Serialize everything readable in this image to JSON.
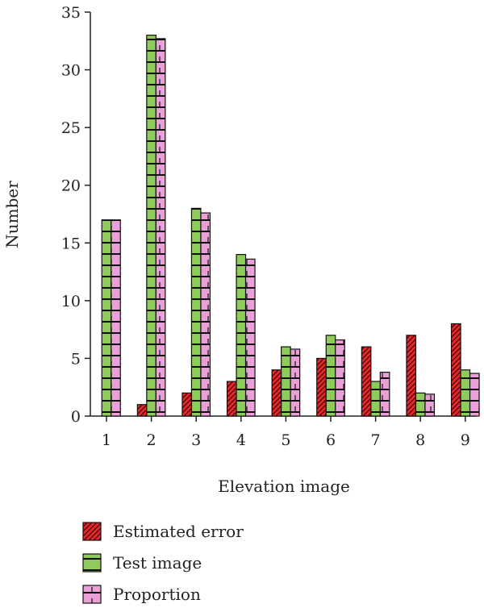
{
  "chart_data": {
    "type": "bar",
    "xlabel": "Elevation image",
    "ylabel": "Number",
    "categories": [
      "1",
      "2",
      "3",
      "4",
      "5",
      "6",
      "7",
      "8",
      "9"
    ],
    "ylim": [
      0,
      35
    ],
    "yticks": [
      0,
      5,
      10,
      15,
      20,
      25,
      30,
      35
    ],
    "grid": false,
    "legend_position": "bottom-left",
    "series": [
      {
        "name": "Estimated error",
        "values": [
          0,
          1,
          2,
          3,
          4,
          5,
          6,
          7,
          8
        ],
        "color": "#e8272b",
        "pattern": "diagonal-hatch"
      },
      {
        "name": "Test image",
        "values": [
          17,
          33,
          18,
          14,
          6,
          7,
          3,
          2,
          4
        ],
        "color": "#8fca5c",
        "pattern": "horizontal-dash"
      },
      {
        "name": "Proportion",
        "values": [
          17,
          32.7,
          17.6,
          13.6,
          5.8,
          6.6,
          3.8,
          1.9,
          3.7
        ],
        "color": "#e9a0d6",
        "pattern": "brick"
      }
    ]
  }
}
